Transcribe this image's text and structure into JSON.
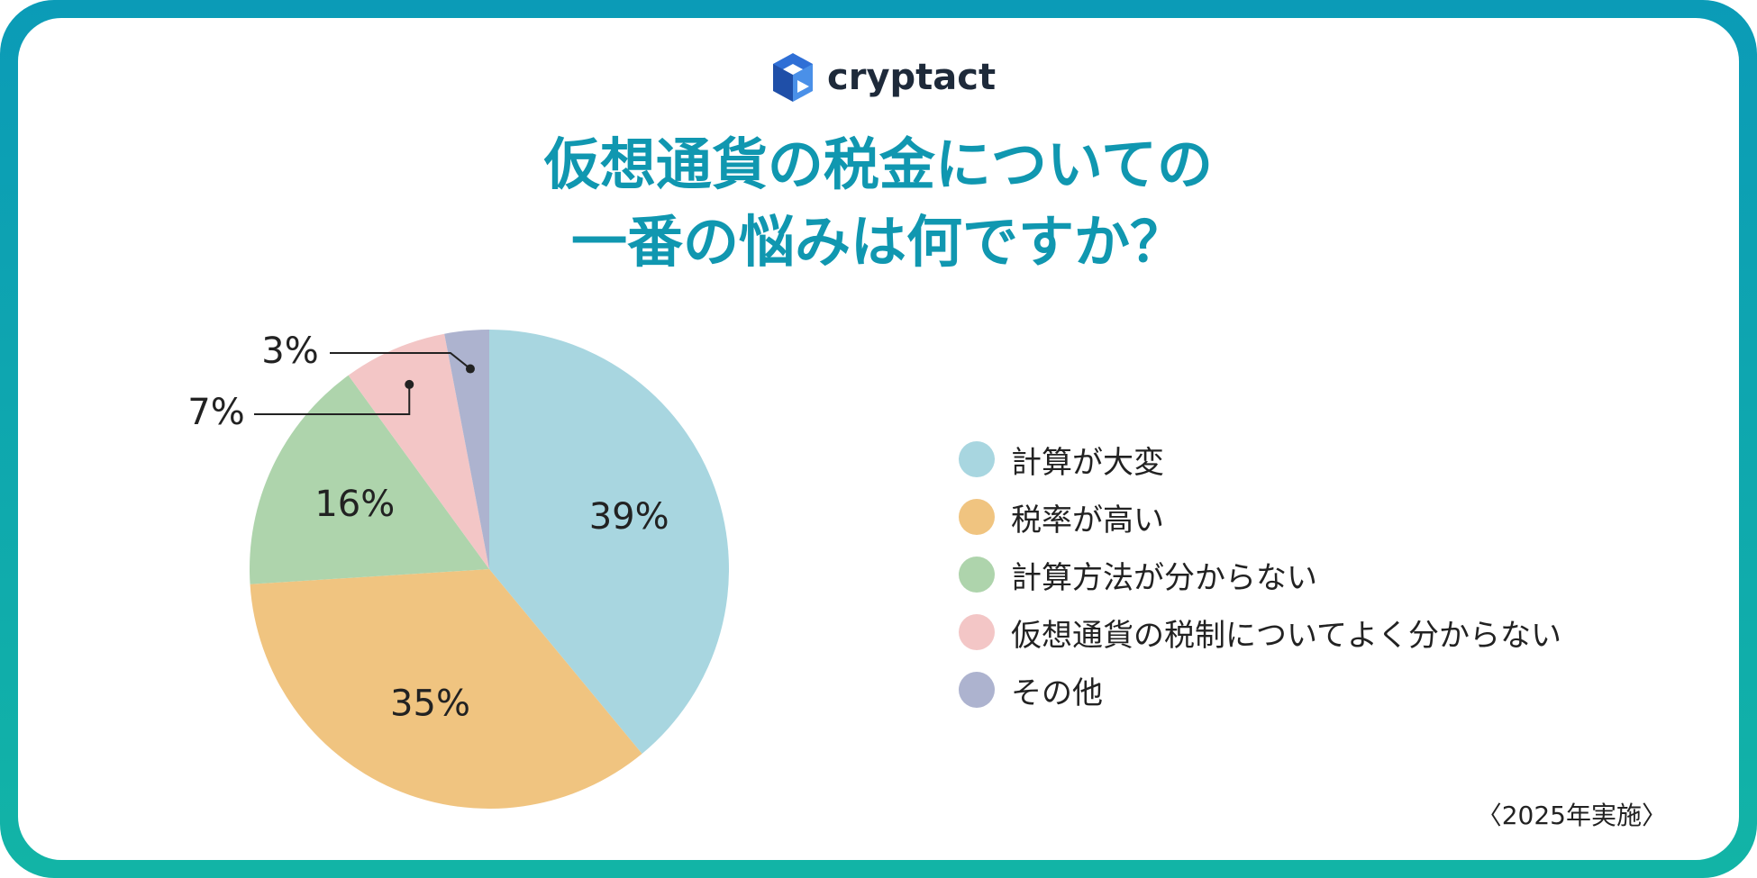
{
  "brand": {
    "name": "cryptact",
    "logo_color": "#2f6fd6"
  },
  "title": {
    "line1": "仮想通貨の税金についての",
    "line2": "一番の悩みは何ですか？"
  },
  "footnote": "〈2025年実施〉",
  "colors": {
    "frame": "#0fa5b0",
    "title": "#1097b0"
  },
  "chart_data": {
    "type": "pie",
    "title": "仮想通貨の税金についての一番の悩みは何ですか？",
    "legend_position": "right",
    "slices": [
      {
        "label": "計算が大変",
        "value": 39,
        "value_label": "39%",
        "color": "#a8d6e0"
      },
      {
        "label": "税率が高い",
        "value": 35,
        "value_label": "35%",
        "color": "#f0c480"
      },
      {
        "label": "計算方法が分からない",
        "value": 16,
        "value_label": "16%",
        "color": "#aed4ac"
      },
      {
        "label": "仮想通貨の税制についてよく分からない",
        "value": 7,
        "value_label": "7%",
        "color": "#f3c6c6"
      },
      {
        "label": "その他",
        "value": 3,
        "value_label": "3%",
        "color": "#adb3cf"
      }
    ]
  }
}
